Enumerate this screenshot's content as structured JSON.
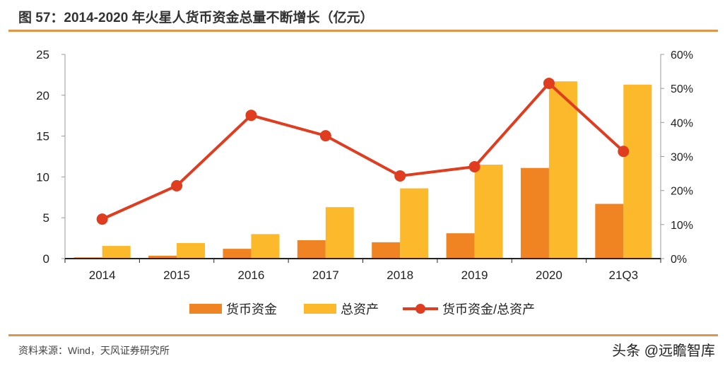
{
  "title": "图 57：2014-2020 年火星人货币资金总量不断增长（亿元）",
  "source": "资料来源：Wind，天风证券研究所",
  "watermark": "头条 @远瞻智库",
  "colors": {
    "cash": "#f08322",
    "assets": "#fbb92b",
    "ratio": "#e03c1f",
    "rule": "#e0954a"
  },
  "chart_data": {
    "type": "bar",
    "categories": [
      "2014",
      "2015",
      "2016",
      "2017",
      "2018",
      "2019",
      "2020",
      "21Q3"
    ],
    "series": [
      {
        "name": "货币资金",
        "type": "bar",
        "axis": "left",
        "values": [
          0.15,
          0.35,
          1.2,
          2.25,
          2.0,
          3.1,
          11.1,
          6.7
        ]
      },
      {
        "name": "总资产",
        "type": "bar",
        "axis": "left",
        "values": [
          1.55,
          1.9,
          3.0,
          6.3,
          8.6,
          11.5,
          21.7,
          21.3
        ]
      },
      {
        "name": "货币资金/总资产",
        "type": "line",
        "axis": "right",
        "values": [
          11.6,
          21.4,
          42.1,
          36.1,
          24.3,
          27.0,
          51.5,
          31.5
        ]
      }
    ],
    "ylim": [
      0,
      25
    ],
    "yticks": [
      "0",
      "5",
      "10",
      "15",
      "20",
      "25"
    ],
    "y2lim": [
      0,
      60
    ],
    "y2ticks": [
      "0%",
      "10%",
      "20%",
      "30%",
      "40%",
      "50%",
      "60%"
    ],
    "grid": false,
    "legend": "bottom"
  }
}
